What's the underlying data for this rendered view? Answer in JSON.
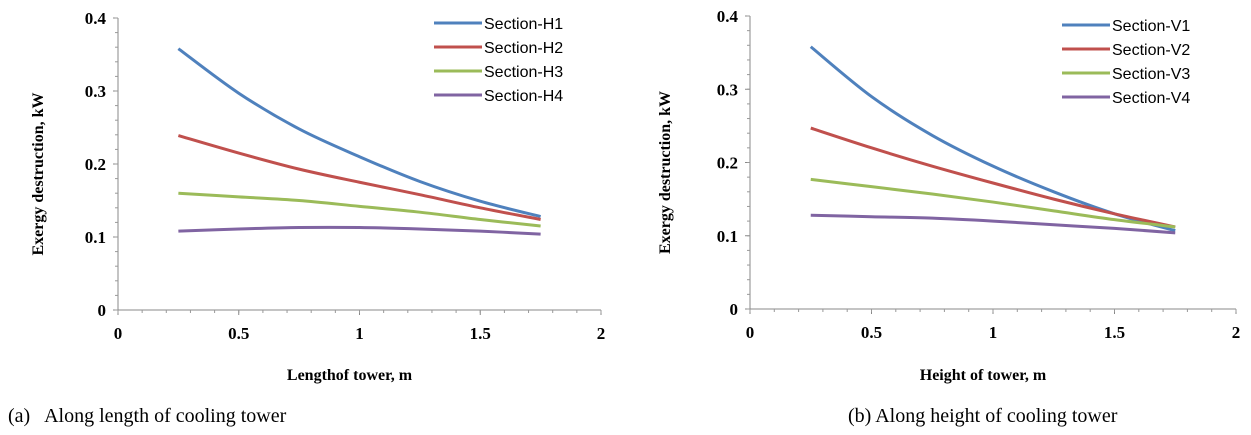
{
  "chart_data": [
    {
      "type": "line",
      "title": "",
      "xlabel": "Lengthof tower, m",
      "ylabel": "Exergy destruction, kW",
      "xlim": [
        0,
        2
      ],
      "ylim": [
        0,
        0.4
      ],
      "xticks": [
        "0",
        "0.5",
        "1",
        "1.5",
        "2"
      ],
      "yticks": [
        "0",
        "0.1",
        "0.2",
        "0.3",
        "0.4"
      ],
      "grid": false,
      "legend_position": "top-right",
      "x": [
        0.25,
        0.5,
        0.75,
        1.0,
        1.25,
        1.5,
        1.75
      ],
      "series": [
        {
          "name": "Section-H1",
          "color": "#4F81BD",
          "values": [
            0.358,
            0.297,
            0.248,
            0.21,
            0.176,
            0.149,
            0.128
          ]
        },
        {
          "name": "Section-H2",
          "color": "#C0504D",
          "values": [
            0.239,
            0.215,
            0.193,
            0.175,
            0.158,
            0.14,
            0.124
          ]
        },
        {
          "name": "Section-H3",
          "color": "#9BBB59",
          "values": [
            0.16,
            0.155,
            0.15,
            0.142,
            0.134,
            0.124,
            0.115
          ]
        },
        {
          "name": "Section-H4",
          "color": "#8064A2",
          "values": [
            0.108,
            0.111,
            0.113,
            0.113,
            0.111,
            0.108,
            0.104
          ]
        }
      ]
    },
    {
      "type": "line",
      "title": "",
      "xlabel": "Height of tower, m",
      "ylabel": "Exergy destruction, kW",
      "xlim": [
        0,
        2
      ],
      "ylim": [
        0,
        0.4
      ],
      "xticks": [
        "0",
        "0.5",
        "1",
        "1.5",
        "2"
      ],
      "yticks": [
        "0",
        "0.1",
        "0.2",
        "0.3",
        "0.4"
      ],
      "grid": false,
      "legend_position": "top-right",
      "x": [
        0.25,
        0.5,
        0.75,
        1.0,
        1.25,
        1.5,
        1.75
      ],
      "series": [
        {
          "name": "Section-V1",
          "color": "#4F81BD",
          "values": [
            0.358,
            0.29,
            0.237,
            0.195,
            0.16,
            0.13,
            0.107
          ]
        },
        {
          "name": "Section-V2",
          "color": "#C0504D",
          "values": [
            0.247,
            0.22,
            0.195,
            0.172,
            0.15,
            0.13,
            0.112
          ]
        },
        {
          "name": "Section-V3",
          "color": "#9BBB59",
          "values": [
            0.177,
            0.167,
            0.157,
            0.146,
            0.134,
            0.122,
            0.112
          ]
        },
        {
          "name": "Section-V4",
          "color": "#8064A2",
          "values": [
            0.128,
            0.126,
            0.124,
            0.12,
            0.115,
            0.11,
            0.104
          ]
        }
      ]
    }
  ],
  "captions": {
    "left": "(a)   Along length of cooling tower",
    "right": "(b) Along height of cooling tower"
  }
}
